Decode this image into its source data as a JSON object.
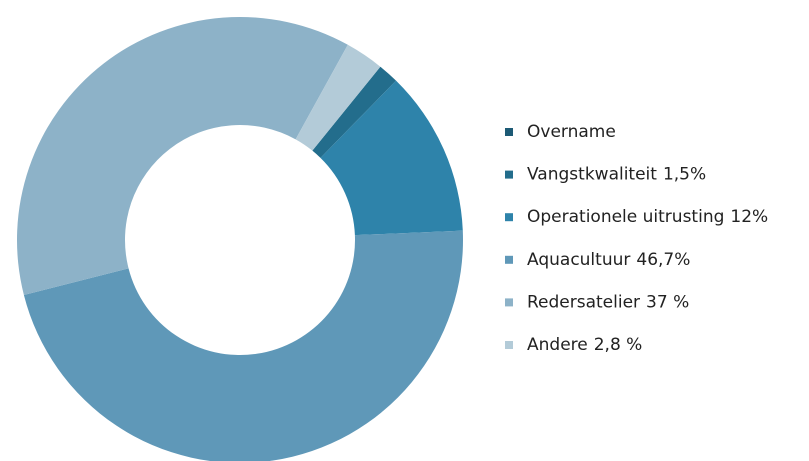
{
  "chart_data": {
    "type": "donut",
    "categories": [
      "Overname",
      "Vangstkwaliteit",
      "Operationele uitrusting",
      "Aquacultuur",
      "Redersatelier",
      "Andere"
    ],
    "values": [
      0,
      1.5,
      12,
      46.7,
      37,
      2.8
    ],
    "value_labels": [
      null,
      "1,5%",
      "12%",
      "46,7%",
      "37 %",
      "2,8 %"
    ],
    "colors": [
      "#1d5a75",
      "#236d8c",
      "#2e83aa",
      "#5f98b8",
      "#8db2c8",
      "#b3cbd8"
    ],
    "legend": "right"
  }
}
